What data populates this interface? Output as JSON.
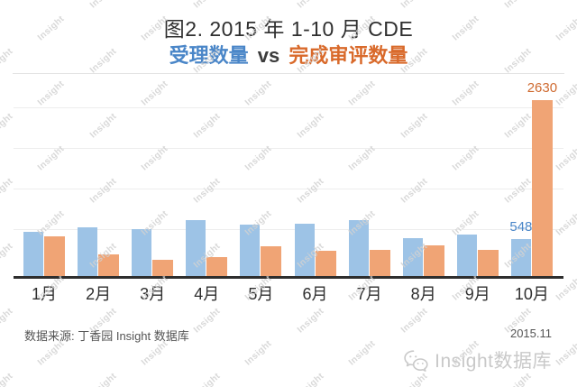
{
  "title": {
    "line1": "图2. 2015 年 1-10 月 CDE",
    "line2_blue": "受理数量",
    "line2_vs": "vs",
    "line2_orange": "完成审评数量"
  },
  "watermark": {
    "text": "Insight"
  },
  "chart_data": {
    "type": "bar",
    "title": "图2. 2015 年 1-10 月 CDE 受理数量 vs 完成审评数量",
    "categories": [
      "1月",
      "2月",
      "3月",
      "4月",
      "5月",
      "6月",
      "7月",
      "8月",
      "9月",
      "10月"
    ],
    "series": [
      {
        "name": "受理数量",
        "color": "#9dc3e6",
        "values": [
          660,
          730,
          700,
          835,
          770,
          780,
          835,
          565,
          620,
          548
        ]
      },
      {
        "name": "完成审评数量",
        "color": "#f0a475",
        "values": [
          590,
          325,
          245,
          285,
          445,
          380,
          390,
          460,
          390,
          2630
        ]
      }
    ],
    "data_labels": [
      {
        "series": 0,
        "index": 9,
        "text": "548",
        "color": "#4a86c8"
      },
      {
        "series": 1,
        "index": 9,
        "text": "2630",
        "color": "#cf6a30"
      }
    ],
    "ylim": [
      0,
      2900
    ],
    "grid": true,
    "xlabel": "",
    "ylabel": "",
    "legend_position": "in-subtitle"
  },
  "footer": {
    "source": "数据来源: 丁香园 Insight 数据库",
    "date": "2015.11"
  },
  "logo": {
    "text": "Insight数据库"
  }
}
